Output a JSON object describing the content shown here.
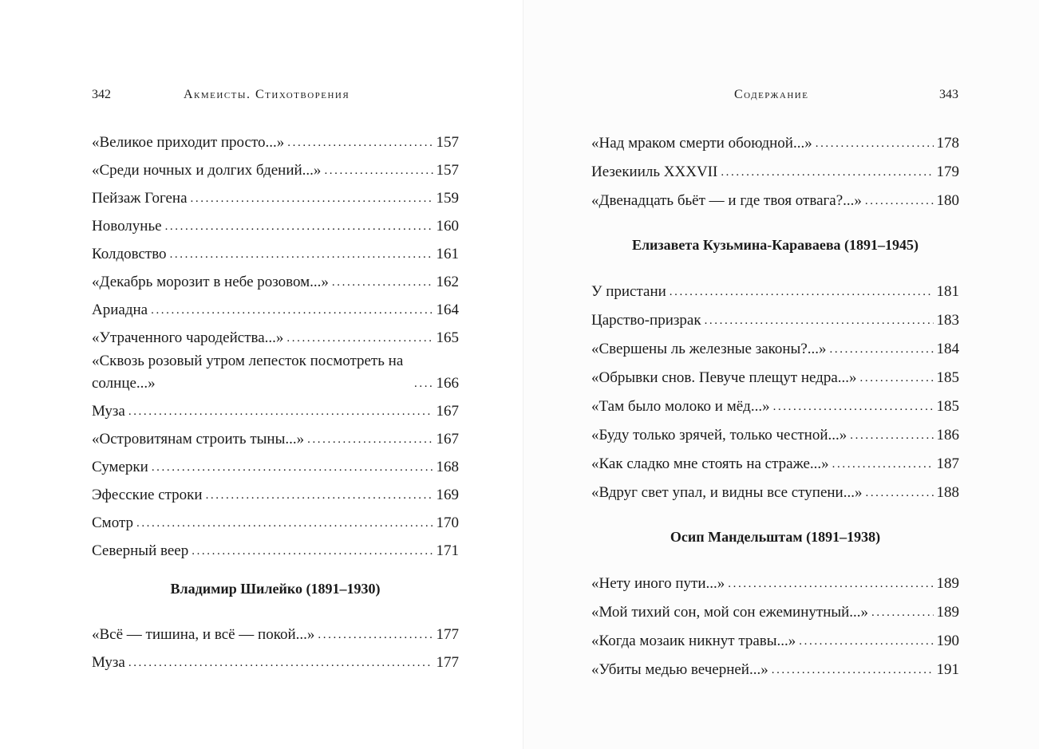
{
  "left_page": {
    "page_number": "342",
    "running_head": "Акмеисты. Стихотворения",
    "entries_a": [
      {
        "title": "«Великое приходит просто...»",
        "page": "157"
      },
      {
        "title": "«Среди ночных и долгих бдений...»",
        "page": "157"
      },
      {
        "title": "Пейзаж Гогена",
        "page": "159"
      },
      {
        "title": "Новолунье",
        "page": "160"
      },
      {
        "title": "Колдовство",
        "page": "161"
      },
      {
        "title": "«Декабрь морозит в небе розовом...»",
        "page": "162"
      },
      {
        "title": "Ариадна",
        "page": "164"
      },
      {
        "title": "«Утраченного чародейства...»",
        "page": "165"
      },
      {
        "title": "«Сквозь розовый утром лепесток посмотреть на солнце...»",
        "page": "166"
      },
      {
        "title": "Муза",
        "page": "167"
      },
      {
        "title": "«Островитянам строить тыны...»",
        "page": "167"
      },
      {
        "title": "Сумерки",
        "page": "168"
      },
      {
        "title": "Эфесские строки",
        "page": "169"
      },
      {
        "title": "Смотр",
        "page": "170"
      },
      {
        "title": "Северный веер",
        "page": "171"
      }
    ],
    "author_1": "Владимир Шилейко (1891–1930)",
    "entries_b": [
      {
        "title": "«Всё — тишина, и всё — покой...»",
        "page": "177"
      },
      {
        "title": "Муза",
        "page": "177"
      }
    ]
  },
  "right_page": {
    "page_number": "343",
    "running_head": "Содержание",
    "entries_a": [
      {
        "title": "«Над мраком смерти обоюдной...»",
        "page": "178"
      },
      {
        "title": "Иезекииль XXXVII",
        "page": "179"
      },
      {
        "title": "«Двенадцать бьёт — и где твоя отвага?...»",
        "page": "180"
      }
    ],
    "author_1": "Елизавета Кузьмина-Караваева (1891–1945)",
    "entries_b": [
      {
        "title": "У пристани",
        "page": "181"
      },
      {
        "title": "Царство-призрак",
        "page": "183"
      },
      {
        "title": "«Свершены ль железные законы?...»",
        "page": "184"
      },
      {
        "title": "«Обрывки снов. Певуче плещут недра...»",
        "page": "185"
      },
      {
        "title": "«Там было молоко и мёд...»",
        "page": "185"
      },
      {
        "title": "«Буду только зрячей, только честной...»",
        "page": "186"
      },
      {
        "title": "«Как сладко мне стоять на страже...»",
        "page": "187"
      },
      {
        "title": "«Вдруг свет упал, и видны все ступени...»",
        "page": "188"
      }
    ],
    "author_2": "Осип Мандельштам (1891–1938)",
    "entries_c": [
      {
        "title": "«Нету иного пути...»",
        "page": "189"
      },
      {
        "title": "«Мой тихий сон, мой сон ежеминутный...»",
        "page": "189"
      },
      {
        "title": "«Когда мозаик никнут травы...»",
        "page": "190"
      },
      {
        "title": "«Убиты медью вечерней...»",
        "page": "191"
      }
    ]
  }
}
